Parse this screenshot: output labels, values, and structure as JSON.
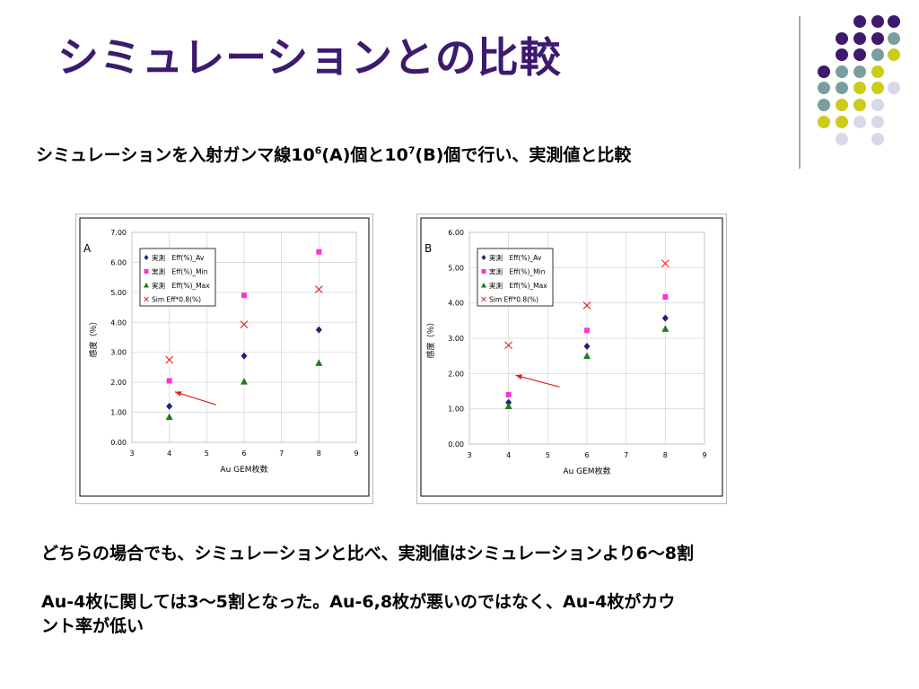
{
  "slide": {
    "title": "シミュレーションとの比較",
    "subtitle_pre": "シミュレーションを入射ガンマ線10",
    "subtitle_sup1": "6",
    "subtitle_mid": "(A)個と10",
    "subtitle_sup2": "7",
    "subtitle_post": "(B)個で行い、実測値と比較",
    "bullet1": "どちらの場合でも、シミュレーションと比べ、実測値はシミュレーションより6～8割",
    "bullet2_line1": "Au-4枚に関しては3～5割となった。Au-6,8枚が悪いのではなく、Au-4枚がカウ",
    "bullet2_line2": "ント率が低い"
  },
  "colors": {
    "title": "#3d1a6e",
    "dot_purple": "#3d1a6e",
    "dot_teal": "#7a9e9f",
    "dot_yellow": "#cccc1a",
    "dot_lavender": "#d8d8e8",
    "series_av": "#1a237e",
    "series_min": "#ff33cc",
    "series_max": "#1e7b1e",
    "series_sim": "#e03030",
    "arrow": "#e02020"
  },
  "chart_data": [
    {
      "type": "scatter",
      "panel_label": "A",
      "xlabel": "Au GEM枚数",
      "ylabel": "感度（％）",
      "xlim": [
        3,
        9
      ],
      "ylim": [
        0,
        7
      ],
      "xticks": [
        "3",
        "4",
        "5",
        "6",
        "7",
        "8",
        "9"
      ],
      "yticks": [
        "0.00",
        "1.00",
        "2.00",
        "3.00",
        "4.00",
        "5.00",
        "6.00",
        "7.00"
      ],
      "grid": true,
      "legend_position": "top-left",
      "series": [
        {
          "name": "実測　Eff(%)_Av",
          "marker": "diamond",
          "x": [
            4,
            6,
            8
          ],
          "y": [
            1.2,
            2.88,
            3.75
          ]
        },
        {
          "name": "実測　Eff(%)_Min",
          "marker": "square",
          "x": [
            4,
            6,
            8
          ],
          "y": [
            2.05,
            4.9,
            6.35
          ]
        },
        {
          "name": "実測　Eff(%)_Max",
          "marker": "triangle",
          "x": [
            4,
            6,
            8
          ],
          "y": [
            0.85,
            2.03,
            2.65
          ]
        },
        {
          "name": "Sim Eff*0.8(%)",
          "marker": "x",
          "x": [
            4,
            6,
            8
          ],
          "y": [
            2.75,
            3.93,
            5.1
          ]
        }
      ],
      "arrow": {
        "from": [
          5.25,
          1.25
        ],
        "to": [
          4.15,
          1.68
        ]
      }
    },
    {
      "type": "scatter",
      "panel_label": "B",
      "xlabel": "Au GEM枚数",
      "ylabel": "感度（％）",
      "xlim": [
        3,
        9
      ],
      "ylim": [
        0,
        6
      ],
      "xticks": [
        "3",
        "4",
        "5",
        "6",
        "7",
        "8",
        "9"
      ],
      "yticks": [
        "0.00",
        "1.00",
        "2.00",
        "3.00",
        "4.00",
        "5.00",
        "6.00"
      ],
      "grid": true,
      "legend_position": "top-left",
      "series": [
        {
          "name": "実測　Eff(%)_Av",
          "marker": "diamond",
          "x": [
            4,
            6,
            8
          ],
          "y": [
            1.18,
            2.77,
            3.57
          ]
        },
        {
          "name": "実測　Eff(%)_Min",
          "marker": "square",
          "x": [
            4,
            6,
            8
          ],
          "y": [
            1.4,
            3.22,
            4.17
          ]
        },
        {
          "name": "実測　Eff(%)_Max",
          "marker": "triangle",
          "x": [
            4,
            6,
            8
          ],
          "y": [
            1.08,
            2.5,
            3.27
          ]
        },
        {
          "name": "Sim Eff*0.8(%)",
          "marker": "x",
          "x": [
            4,
            6,
            8
          ],
          "y": [
            2.8,
            3.93,
            5.12
          ]
        }
      ],
      "arrow": {
        "from": [
          5.3,
          1.62
        ],
        "to": [
          4.18,
          1.95
        ]
      }
    }
  ]
}
